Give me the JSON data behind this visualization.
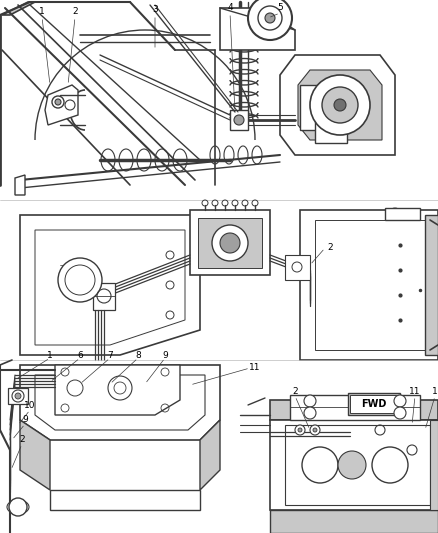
{
  "background_color": "#ffffff",
  "line_color": "#3a3a3a",
  "label_color": "#000000",
  "fig_width": 4.38,
  "fig_height": 5.33,
  "dpi": 100,
  "gray_light": "#c8c8c8",
  "gray_mid": "#a0a0a0",
  "gray_dark": "#707070"
}
